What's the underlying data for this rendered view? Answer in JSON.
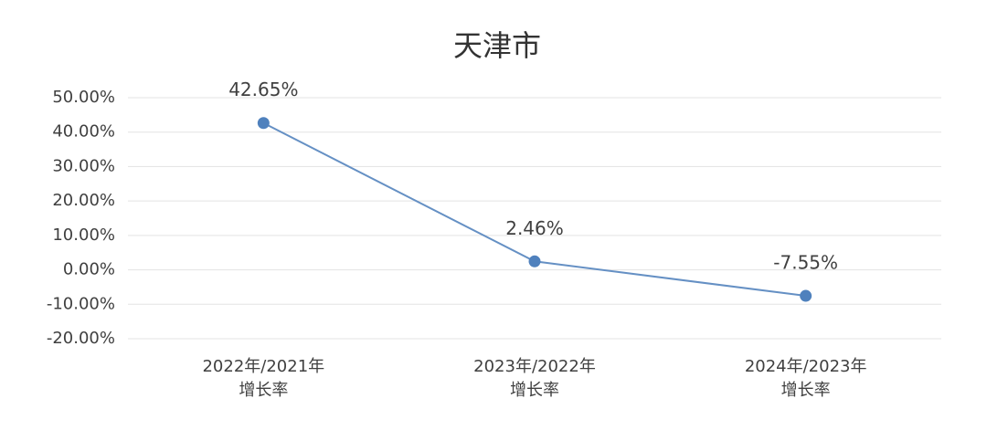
{
  "chart_data": {
    "type": "line",
    "title": "天津市",
    "categories": [
      [
        "2022年/2021年",
        "增长率"
      ],
      [
        "2023年/2022年",
        "增长率"
      ],
      [
        "2024年/2023年",
        "增长率"
      ]
    ],
    "values": [
      42.65,
      2.46,
      -7.55
    ],
    "value_labels": [
      "42.65%",
      "2.46%",
      "-7.55%"
    ],
    "color": "#4f81bd",
    "ylim": [
      -20,
      50
    ],
    "yticks": [
      {
        "value": -20,
        "label": "-20.00%"
      },
      {
        "value": -10,
        "label": "-10.00%"
      },
      {
        "value": 0,
        "label": "0.00%"
      },
      {
        "value": 10,
        "label": "10.00%"
      },
      {
        "value": 20,
        "label": "20.00%"
      },
      {
        "value": 30,
        "label": "30.00%"
      },
      {
        "value": 40,
        "label": "40.00%"
      },
      {
        "value": 50,
        "label": "50.00%"
      }
    ],
    "grid": true
  }
}
